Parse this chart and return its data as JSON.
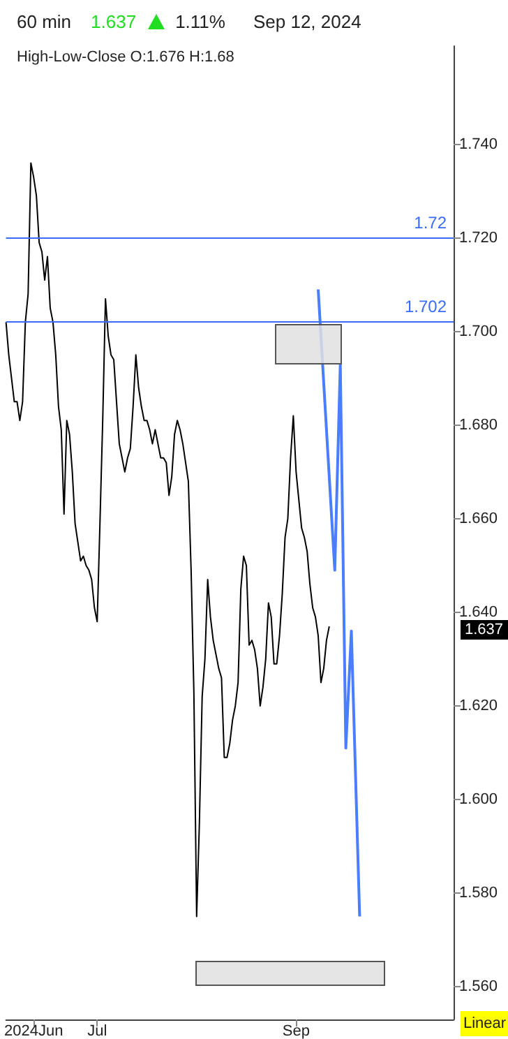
{
  "chart_data": {
    "type": "line",
    "title": "60 min",
    "subtitle": "High-Low-Close O:1.676 H:1.68",
    "annotations": [
      "1.637",
      "1.11%",
      "Sep 12, 2024",
      "1.637",
      "Linear"
    ],
    "categories": [
      null,
      null,
      null,
      null,
      null,
      null,
      null,
      null,
      null,
      null,
      "2024Jun",
      null,
      null,
      null,
      null,
      null,
      null,
      null,
      null,
      null,
      null,
      null,
      null,
      null,
      null,
      null,
      null,
      null,
      null,
      null,
      null,
      null,
      null,
      "Jul",
      null,
      null,
      null,
      null,
      null,
      null,
      null,
      null,
      null,
      null,
      null,
      null,
      null,
      null,
      null,
      null,
      null,
      null,
      null,
      null,
      null,
      null,
      null,
      null,
      null,
      null,
      null,
      null,
      null,
      null,
      null,
      null,
      null,
      null,
      null,
      null,
      null,
      null,
      null,
      null,
      null,
      null,
      null,
      null,
      null,
      null,
      null,
      null,
      null,
      null,
      null,
      null,
      null,
      null,
      null,
      null,
      null,
      null,
      null,
      null,
      null,
      null,
      null,
      null,
      null,
      null,
      null,
      null,
      null,
      null,
      null,
      "Sep",
      null,
      null,
      null,
      null,
      null,
      null,
      null,
      null,
      null,
      null,
      null,
      null,
      null,
      null,
      null,
      null,
      null,
      null,
      null,
      null,
      null,
      null,
      null,
      null,
      null,
      null,
      null,
      null,
      null,
      null,
      null,
      null,
      null,
      null,
      null,
      null,
      null,
      null,
      null,
      null,
      null,
      null,
      null,
      null,
      null,
      null,
      null,
      null,
      null,
      null,
      null,
      null,
      null,
      null,
      null,
      null,
      null
    ],
    "series": [
      {
        "color": "#000000",
        "values": [
          1.702,
          1.695,
          1.69,
          1.685,
          1.685,
          1.681,
          1.685,
          1.702,
          1.708,
          1.736,
          1.733,
          1.729,
          1.719,
          1.717,
          1.711,
          1.716,
          1.705,
          1.702,
          1.695,
          1.684,
          1.679,
          1.661,
          1.681,
          1.678,
          1.67,
          1.659,
          1.655,
          1.651,
          1.652,
          1.65,
          1.649,
          1.647,
          1.641,
          1.638,
          1.659,
          1.681,
          1.707,
          1.699,
          1.695,
          1.694,
          1.685,
          1.676,
          1.673,
          1.67,
          1.673,
          1.675,
          1.684,
          1.695,
          1.688,
          1.684,
          1.681,
          1.681,
          1.679,
          1.676,
          1.679,
          1.676,
          1.673,
          1.673,
          1.672,
          1.665,
          1.669,
          1.678,
          1.681,
          1.679,
          1.676,
          1.672,
          1.668,
          1.649,
          1.623,
          1.575,
          1.595,
          1.622,
          1.63,
          1.647,
          1.639,
          1.634,
          1.631,
          1.628,
          1.626,
          1.609,
          1.609,
          1.612,
          1.617,
          1.62,
          1.625,
          1.645,
          1.652,
          1.65,
          1.633,
          1.634,
          1.632,
          1.628,
          1.62,
          1.624,
          1.63,
          1.642,
          1.639,
          1.629,
          1.629,
          1.635,
          1.644,
          1.656,
          1.66,
          1.673,
          1.682,
          1.67,
          1.664,
          1.658,
          1.656,
          1.653,
          1.646,
          1.641,
          1.639,
          1.635,
          1.625,
          1.628,
          1.634,
          1.637,
          null,
          null,
          null,
          null,
          null,
          null,
          null,
          null,
          null,
          null,
          null,
          null,
          null,
          null,
          null,
          null,
          null,
          null,
          null,
          null,
          null,
          null,
          null,
          null,
          null,
          null,
          null,
          null,
          null,
          null,
          null,
          null,
          null,
          null,
          null,
          null,
          null,
          null,
          null,
          null,
          null,
          null,
          null,
          null,
          null
        ]
      },
      {
        "color": "#4a7dff",
        "values": [
          null,
          null,
          null,
          null,
          null,
          null,
          null,
          null,
          null,
          null,
          null,
          null,
          null,
          null,
          null,
          null,
          null,
          null,
          null,
          null,
          null,
          null,
          null,
          null,
          null,
          null,
          null,
          null,
          null,
          null,
          null,
          null,
          null,
          null,
          null,
          null,
          null,
          null,
          null,
          null,
          null,
          null,
          null,
          null,
          null,
          null,
          null,
          null,
          null,
          null,
          null,
          null,
          null,
          null,
          null,
          null,
          null,
          null,
          null,
          null,
          null,
          null,
          null,
          null,
          null,
          null,
          null,
          null,
          null,
          null,
          null,
          null,
          null,
          null,
          null,
          null,
          null,
          null,
          null,
          null,
          null,
          null,
          null,
          null,
          null,
          null,
          null,
          null,
          null,
          null,
          null,
          null,
          null,
          null,
          null,
          null,
          null,
          null,
          null,
          null,
          null,
          null,
          null,
          null,
          null,
          null,
          null,
          null,
          null,
          null,
          null,
          null,
          null,
          1.709,
          null,
          null,
          null,
          null,
          null,
          1.649,
          null,
          1.693,
          null,
          1.611,
          null,
          1.636,
          null,
          null,
          1.575,
          null,
          null,
          null,
          null,
          null,
          null,
          null,
          null,
          null,
          null,
          null,
          null,
          null,
          null,
          null,
          null,
          null,
          null,
          null,
          null,
          null,
          null,
          null,
          null,
          null,
          null,
          null,
          null,
          null,
          null,
          null,
          null,
          null,
          null
        ]
      }
    ],
    "ylim": [
      1.553,
      1.761
    ],
    "yticks": [
      {
        "value": 1.56,
        "label": "1.560"
      },
      {
        "value": 1.58,
        "label": "1.580"
      },
      {
        "value": 1.6,
        "label": "1.600"
      },
      {
        "value": 1.62,
        "label": "1.620"
      },
      {
        "value": 1.64,
        "label": "1.640"
      },
      {
        "value": 1.66,
        "label": "1.660"
      },
      {
        "value": 1.68,
        "label": "1.680"
      },
      {
        "value": 1.7,
        "label": "1.700"
      },
      {
        "value": 1.72,
        "label": "1.720"
      },
      {
        "value": 1.74,
        "label": "1.740"
      }
    ],
    "ref_lines": [
      {
        "axis": "y",
        "value": 1.72,
        "label": "1.72",
        "color": "#3a6bff"
      },
      {
        "axis": "y",
        "value": 1.702,
        "label": "1.702",
        "color": "#3a6bff"
      }
    ],
    "grid": false,
    "marker": "none"
  }
}
